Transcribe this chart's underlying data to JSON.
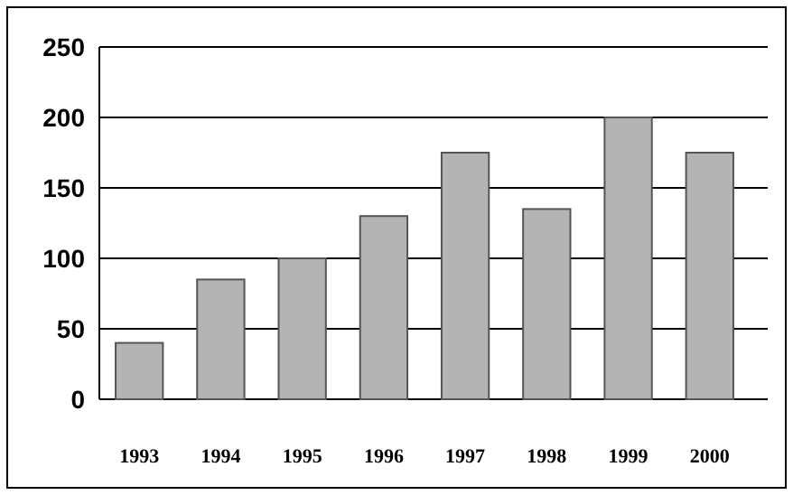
{
  "chart_data": {
    "type": "bar",
    "categories": [
      "1993",
      "1994",
      "1995",
      "1996",
      "1997",
      "1998",
      "1999",
      "2000"
    ],
    "values": [
      40,
      85,
      100,
      130,
      175,
      135,
      200,
      175
    ],
    "color": "#b4b4b4",
    "ylim": [
      0,
      250
    ],
    "yticks": [
      0,
      50,
      100,
      150,
      200,
      250
    ],
    "grid": "y"
  }
}
